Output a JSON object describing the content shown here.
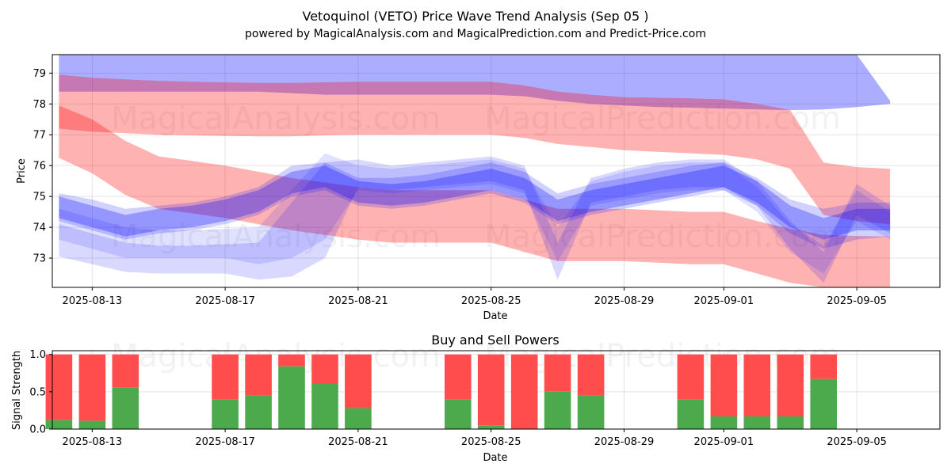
{
  "chart_data": [
    {
      "type": "area",
      "title": "Vetoquinol (VETO) Price Wave Trend Analysis (Sep 05 )",
      "subtitle": "powered by MagicalAnalysis.com and MagicalPrediction.com and Predict-Price.com",
      "xlabel": "Date",
      "ylabel": "Price",
      "ylim": [
        72.05,
        79.6
      ],
      "xlim": [
        -1.2,
        25.5
      ],
      "grid": true,
      "x_ticks": [
        {
          "value": 0,
          "label": "2025-08-13"
        },
        {
          "value": 4,
          "label": "2025-08-17"
        },
        {
          "value": 8,
          "label": "2025-08-21"
        },
        {
          "value": 12,
          "label": "2025-08-25"
        },
        {
          "value": 16,
          "label": "2025-08-29"
        },
        {
          "value": 19,
          "label": "2025-09-01"
        },
        {
          "value": 23,
          "label": "2025-09-05"
        }
      ],
      "y_ticks": [
        73,
        74,
        75,
        76,
        77,
        78,
        79
      ],
      "watermarks": [
        "MagicalAnalysis.com",
        "MagicalPrediction.com"
      ],
      "x": [
        -1.0,
        0.0,
        1.0,
        2.0,
        3.0,
        4.0,
        5.0,
        6.0,
        7.0,
        8.0,
        9.0,
        10.0,
        11.0,
        12.0,
        13.0,
        14.0,
        15.0,
        16.0,
        17.0,
        18.0,
        19.0,
        20.0,
        21.0,
        22.0,
        23.0,
        24.0
      ],
      "series": [
        {
          "name": "blue-upper",
          "color": "#0000ff",
          "alpha": 0.32,
          "upper": [
            79.6,
            79.6,
            79.6,
            79.6,
            79.6,
            79.6,
            79.6,
            79.6,
            79.6,
            79.6,
            79.6,
            79.6,
            79.6,
            79.6,
            79.6,
            79.6,
            79.6,
            79.6,
            79.6,
            79.6,
            79.6,
            79.6,
            79.6,
            79.6,
            79.6,
            78.1
          ],
          "lower": [
            78.4,
            78.4,
            78.4,
            78.4,
            78.4,
            78.4,
            78.4,
            78.35,
            78.3,
            78.3,
            78.3,
            78.3,
            78.3,
            78.3,
            78.25,
            78.1,
            78.0,
            77.95,
            77.9,
            77.88,
            77.85,
            77.82,
            77.8,
            77.82,
            77.9,
            78.0
          ]
        },
        {
          "name": "red-upper",
          "color": "#ff0000",
          "alpha": 0.3,
          "upper": [
            78.95,
            78.85,
            78.8,
            78.75,
            78.72,
            78.7,
            78.68,
            78.68,
            78.7,
            78.72,
            78.72,
            78.72,
            78.72,
            78.72,
            78.6,
            78.4,
            78.3,
            78.22,
            78.2,
            78.18,
            78.15,
            78.0,
            77.8,
            76.1,
            75.95,
            75.9
          ],
          "lower": [
            77.2,
            77.1,
            77.05,
            77.0,
            76.98,
            76.96,
            76.95,
            76.95,
            76.98,
            77.0,
            77.0,
            77.0,
            77.0,
            77.0,
            76.9,
            76.7,
            76.6,
            76.5,
            76.45,
            76.4,
            76.35,
            76.2,
            75.9,
            74.4,
            74.2,
            74.1
          ]
        },
        {
          "name": "red-middle",
          "color": "#ff0000",
          "alpha": 0.3,
          "upper": [
            77.95,
            77.5,
            76.8,
            76.3,
            76.15,
            76.0,
            75.8,
            75.6,
            75.45,
            75.3,
            75.2,
            75.2,
            75.2,
            75.2,
            74.9,
            74.6,
            74.6,
            74.6,
            74.55,
            74.5,
            74.5,
            74.2,
            73.95,
            73.75,
            73.72,
            73.7
          ],
          "lower": [
            76.25,
            75.75,
            75.05,
            74.6,
            74.45,
            74.3,
            74.1,
            73.9,
            73.75,
            73.6,
            73.5,
            73.5,
            73.5,
            73.5,
            73.2,
            72.9,
            72.9,
            72.9,
            72.85,
            72.8,
            72.8,
            72.5,
            72.2,
            72.05,
            72.05,
            72.05
          ]
        },
        {
          "name": "blue-band-1",
          "color": "#0000ff",
          "alpha": 0.28,
          "upper": [
            75.0,
            74.7,
            74.4,
            74.6,
            74.7,
            74.9,
            75.2,
            75.8,
            76.0,
            75.5,
            75.4,
            75.5,
            75.7,
            75.9,
            75.6,
            74.9,
            75.2,
            75.4,
            75.6,
            75.8,
            76.0,
            75.5,
            74.7,
            74.3,
            74.6,
            74.6
          ],
          "lower": [
            74.3,
            74.0,
            73.7,
            73.9,
            74.0,
            74.2,
            74.5,
            75.1,
            75.3,
            74.8,
            74.7,
            74.8,
            75.0,
            75.2,
            74.9,
            74.2,
            74.5,
            74.7,
            74.9,
            75.1,
            75.3,
            74.8,
            74.0,
            73.6,
            73.9,
            73.9
          ]
        },
        {
          "name": "blue-band-2",
          "color": "#0000ff",
          "alpha": 0.18,
          "upper": [
            75.1,
            74.9,
            74.6,
            74.7,
            74.8,
            75.0,
            75.3,
            76.0,
            76.1,
            75.6,
            75.6,
            75.7,
            75.9,
            76.1,
            75.8,
            75.1,
            75.4,
            75.6,
            75.8,
            76.0,
            76.1,
            75.6,
            74.9,
            74.6,
            74.8,
            74.8
          ],
          "lower": [
            74.2,
            73.9,
            73.6,
            73.8,
            73.9,
            74.1,
            74.4,
            75.0,
            75.2,
            74.7,
            74.6,
            74.7,
            74.9,
            75.1,
            74.8,
            74.1,
            74.4,
            74.6,
            74.8,
            75.0,
            75.2,
            74.7,
            73.8,
            73.3,
            73.6,
            73.7
          ]
        },
        {
          "name": "blue-dip",
          "color": "#0000ff",
          "alpha": 0.15,
          "upper": [
            74.1,
            73.8,
            73.5,
            73.4,
            73.4,
            73.45,
            73.5,
            74.8,
            76.1,
            76.2,
            76.0,
            76.1,
            76.2,
            76.3,
            76.0,
            73.5,
            75.6,
            75.9,
            76.1,
            76.2,
            76.2,
            75.5,
            74.2,
            73.2,
            75.4,
            74.7
          ],
          "lower": [
            73.05,
            72.8,
            72.55,
            72.5,
            72.5,
            72.5,
            72.3,
            72.4,
            73.0,
            75.3,
            75.2,
            75.3,
            75.4,
            75.5,
            75.2,
            72.3,
            74.8,
            75.0,
            75.2,
            75.3,
            75.3,
            74.7,
            73.3,
            72.2,
            74.4,
            73.8
          ]
        },
        {
          "name": "blue-dip-2",
          "color": "#0000ff",
          "alpha": 0.12,
          "upper": [
            74.6,
            74.3,
            74.0,
            73.9,
            73.9,
            73.95,
            74.0,
            75.2,
            76.4,
            76.0,
            75.9,
            76.0,
            76.1,
            76.2,
            75.9,
            74.0,
            75.5,
            75.8,
            76.0,
            76.1,
            76.1,
            75.3,
            74.1,
            73.4,
            75.2,
            74.5
          ],
          "lower": [
            73.6,
            73.3,
            73.0,
            73.0,
            73.0,
            73.0,
            72.8,
            73.0,
            73.6,
            75.2,
            75.1,
            75.2,
            75.3,
            75.4,
            75.1,
            72.9,
            74.7,
            74.9,
            75.1,
            75.2,
            75.2,
            74.5,
            73.2,
            72.5,
            74.2,
            73.6
          ]
        }
      ]
    },
    {
      "type": "bar",
      "title": "Buy and Sell Powers",
      "xlabel": "Date",
      "ylabel": "Signal Strength",
      "ylim": [
        0,
        1.05
      ],
      "xlim": [
        -1.2,
        25.5
      ],
      "grid": true,
      "x_ticks": [
        {
          "value": 0,
          "label": "2025-08-13"
        },
        {
          "value": 4,
          "label": "2025-08-17"
        },
        {
          "value": 8,
          "label": "2025-08-21"
        },
        {
          "value": 12,
          "label": "2025-08-25"
        },
        {
          "value": 16,
          "label": "2025-08-29"
        },
        {
          "value": 19,
          "label": "2025-09-01"
        },
        {
          "value": 23,
          "label": "2025-09-05"
        }
      ],
      "y_ticks": [
        {
          "value": 0,
          "label": "0.0"
        },
        {
          "value": 0.5,
          "label": "0.5"
        },
        {
          "value": 1.0,
          "label": "1.0"
        }
      ],
      "watermarks": [
        "MagicalAnalysis.com",
        "MagicalPrediction.com"
      ],
      "buy_color": "#4caa4c",
      "sell_color": "#ff4d4d",
      "bars": [
        {
          "x": -1,
          "buy": 0.12
        },
        {
          "x": 0,
          "buy": 0.11
        },
        {
          "x": 1,
          "buy": 0.56
        },
        {
          "x": 4,
          "buy": 0.4
        },
        {
          "x": 5,
          "buy": 0.45
        },
        {
          "x": 6,
          "buy": 0.84
        },
        {
          "x": 7,
          "buy": 0.61
        },
        {
          "x": 8,
          "buy": 0.28
        },
        {
          "x": 11,
          "buy": 0.4
        },
        {
          "x": 12,
          "buy": 0.05
        },
        {
          "x": 13,
          "buy": 0.0
        },
        {
          "x": 14,
          "buy": 0.5
        },
        {
          "x": 15,
          "buy": 0.45
        },
        {
          "x": 18,
          "buy": 0.4
        },
        {
          "x": 19,
          "buy": 0.17
        },
        {
          "x": 20,
          "buy": 0.17
        },
        {
          "x": 21,
          "buy": 0.17
        },
        {
          "x": 22,
          "buy": 0.67
        }
      ]
    }
  ]
}
